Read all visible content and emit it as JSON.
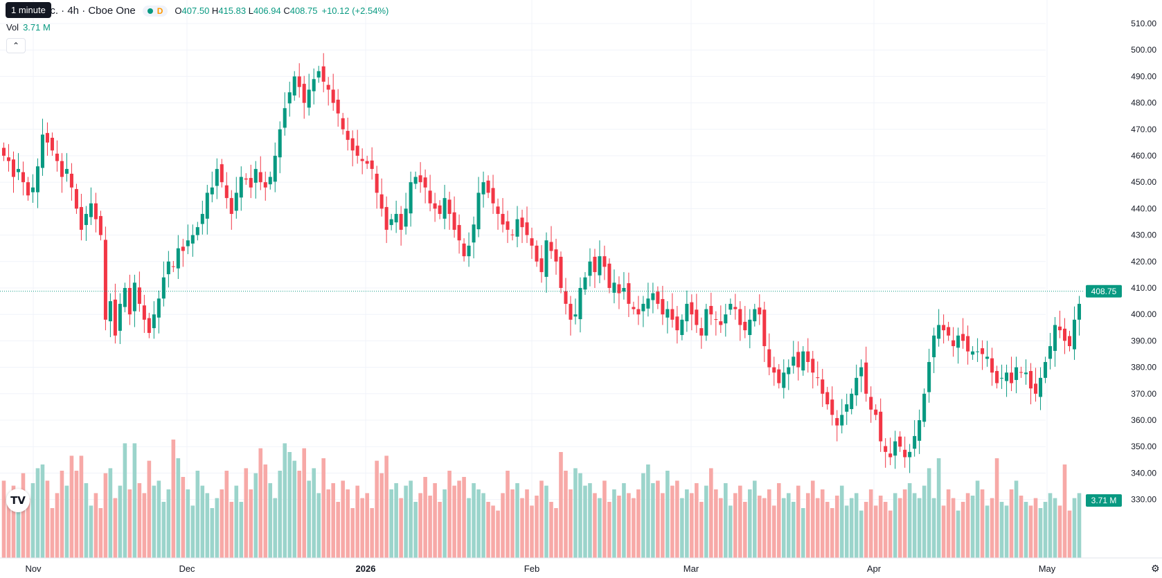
{
  "header": {
    "title": "nc. · 4h · Cboe One",
    "status_dot": "market-open-dot",
    "interval_badge": "D",
    "tooltip": "1 minute",
    "ohlc": {
      "o_label": "O",
      "o_value": "407.50",
      "h_label": "H",
      "h_value": "415.83",
      "l_label": "L",
      "l_value": "406.94",
      "c_label": "C",
      "c_value": "408.75",
      "change": "+10.12 (+2.54%)"
    },
    "vol_label": "Vol",
    "vol_value": "3.71 M",
    "collapse_icon": "chevron-up-icon",
    "logo_text": "TV",
    "settings_icon": "gear-icon"
  },
  "colors": {
    "up": "#089981",
    "down": "#f23645",
    "up_volume": "#9bd4cb",
    "down_volume": "#f7a9a7",
    "grid": "#f0f3fa",
    "price_line": "#089981"
  },
  "chart_data": {
    "type": "candlestick",
    "interval": "4h",
    "ylim": [
      320,
      515
    ],
    "y_ticks": [
      "510.00",
      "500.00",
      "490.00",
      "480.00",
      "470.00",
      "460.00",
      "450.00",
      "440.00",
      "430.00",
      "420.00",
      "410.00",
      "400.00",
      "390.00",
      "380.00",
      "370.00",
      "360.00",
      "350.00",
      "340.00",
      "330.00"
    ],
    "x_labels": [
      "Nov",
      "Dec",
      "2026",
      "Feb",
      "Mar",
      "Apr",
      "May"
    ],
    "last_price": "408.75",
    "last_volume": "3.71 M",
    "closes": [
      460,
      458,
      452,
      455,
      450,
      445,
      448,
      456,
      468,
      465,
      462,
      458,
      452,
      455,
      448,
      440,
      432,
      438,
      442,
      436,
      430,
      398,
      405,
      392,
      404,
      410,
      400,
      412,
      404,
      398,
      393,
      400,
      406,
      414,
      420,
      418,
      425,
      424,
      428,
      430,
      433,
      438,
      446,
      448,
      455,
      450,
      444,
      438,
      446,
      452,
      451,
      448,
      455,
      450,
      448,
      452,
      460,
      470,
      478,
      484,
      490,
      486,
      480,
      485,
      489,
      492,
      488,
      485,
      480,
      476,
      470,
      466,
      462,
      460,
      458,
      457,
      455,
      446,
      440,
      432,
      436,
      438,
      432,
      440,
      450,
      452,
      450,
      448,
      442,
      440,
      438,
      444,
      438,
      432,
      428,
      422,
      426,
      434,
      446,
      450,
      446,
      442,
      438,
      434,
      432,
      430,
      436,
      433,
      430,
      426,
      420,
      416,
      428,
      424,
      420,
      410,
      404,
      398,
      400,
      410,
      414,
      420,
      416,
      422,
      418,
      410,
      412,
      408,
      410,
      404,
      402,
      400,
      404,
      406,
      408,
      404,
      400,
      402,
      398,
      394,
      398,
      404,
      400,
      396,
      392,
      402,
      400,
      398,
      396,
      400,
      404,
      402,
      396,
      394,
      398,
      402,
      400,
      388,
      380,
      378,
      374,
      378,
      380,
      384,
      380,
      386,
      382,
      378,
      376,
      370,
      366,
      362,
      358,
      362,
      366,
      370,
      376,
      380,
      370,
      364,
      362,
      352,
      348,
      346,
      352,
      350,
      346,
      348,
      354,
      360,
      370,
      382,
      392,
      396,
      394,
      392,
      388,
      392,
      390,
      386,
      386,
      386,
      385,
      384,
      378,
      374,
      376,
      378,
      374,
      380,
      378,
      378,
      372,
      370,
      376,
      382,
      388,
      396,
      394,
      390,
      388,
      398,
      404
    ],
    "volume_scale_min": 0,
    "volume_scale_max": 1,
    "volumes": [
      0.62,
      0.45,
      0.58,
      0.52,
      0.68,
      0.48,
      0.6,
      0.72,
      0.75,
      0.62,
      0.4,
      0.52,
      0.7,
      0.58,
      0.82,
      0.7,
      0.82,
      0.6,
      0.42,
      0.52,
      0.4,
      0.68,
      0.72,
      0.48,
      0.58,
      0.92,
      0.55,
      0.92,
      0.6,
      0.52,
      0.78,
      0.58,
      0.62,
      0.45,
      0.55,
      0.95,
      0.8,
      0.65,
      0.55,
      0.42,
      0.7,
      0.58,
      0.52,
      0.4,
      0.48,
      0.55,
      0.7,
      0.45,
      0.58,
      0.45,
      0.72,
      0.55,
      0.68,
      0.88,
      0.75,
      0.6,
      0.48,
      0.7,
      0.92,
      0.85,
      0.78,
      0.7,
      0.88,
      0.62,
      0.72,
      0.52,
      0.8,
      0.55,
      0.6,
      0.45,
      0.62,
      0.55,
      0.4,
      0.58,
      0.48,
      0.52,
      0.4,
      0.78,
      0.68,
      0.82,
      0.55,
      0.6,
      0.48,
      0.58,
      0.62,
      0.45,
      0.52,
      0.65,
      0.5,
      0.6,
      0.45,
      0.55,
      0.7,
      0.58,
      0.62,
      0.65,
      0.48,
      0.6,
      0.55,
      0.52,
      0.45,
      0.42,
      0.38,
      0.52,
      0.7,
      0.55,
      0.6,
      0.48,
      0.55,
      0.42,
      0.5,
      0.62,
      0.58,
      0.45,
      0.4,
      0.85,
      0.7,
      0.55,
      0.72,
      0.68,
      0.58,
      0.6,
      0.52,
      0.48,
      0.62,
      0.45,
      0.55,
      0.5,
      0.6,
      0.52,
      0.48,
      0.55,
      0.68,
      0.75,
      0.6,
      0.62,
      0.52,
      0.7,
      0.58,
      0.62,
      0.48,
      0.55,
      0.52,
      0.6,
      0.45,
      0.58,
      0.72,
      0.55,
      0.48,
      0.6,
      0.42,
      0.52,
      0.58,
      0.45,
      0.55,
      0.62,
      0.5,
      0.48,
      0.55,
      0.42,
      0.6,
      0.48,
      0.52,
      0.45,
      0.58,
      0.4,
      0.52,
      0.62,
      0.48,
      0.55,
      0.45,
      0.4,
      0.5,
      0.58,
      0.42,
      0.48,
      0.52,
      0.38,
      0.45,
      0.55,
      0.42,
      0.5,
      0.45,
      0.38,
      0.52,
      0.48,
      0.55,
      0.6,
      0.52,
      0.48,
      0.58,
      0.72,
      0.48,
      0.8,
      0.42,
      0.55,
      0.48,
      0.38,
      0.45,
      0.52,
      0.5,
      0.62,
      0.55,
      0.42,
      0.48,
      0.8,
      0.45,
      0.42,
      0.55,
      0.62,
      0.5,
      0.45,
      0.42,
      0.48,
      0.4,
      0.45,
      0.52,
      0.48,
      0.42,
      0.75,
      0.38,
      0.48,
      0.52,
      0.55,
      0.45,
      0.48,
      0.58,
      0.62,
      0.55
    ]
  }
}
